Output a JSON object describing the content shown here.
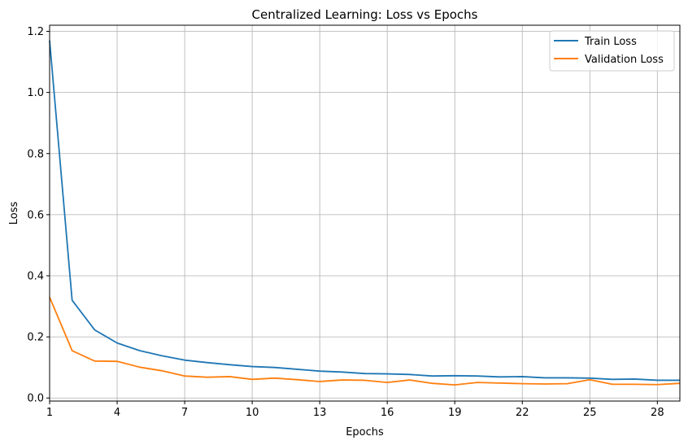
{
  "chart_data": {
    "type": "line",
    "title": "Centralized Learning: Loss vs Epochs",
    "xlabel": "Epochs",
    "ylabel": "Loss",
    "xlim": [
      1,
      29
    ],
    "ylim": [
      -0.01,
      1.22
    ],
    "xticks": [
      1,
      4,
      7,
      10,
      13,
      16,
      19,
      22,
      25,
      28
    ],
    "yticks": [
      0.0,
      0.2,
      0.4,
      0.6,
      0.8,
      1.0,
      1.2
    ],
    "ytick_labels": [
      "0.0",
      "0.2",
      "0.4",
      "0.6",
      "0.8",
      "1.0",
      "1.2"
    ],
    "grid": true,
    "legend_position": "top-right",
    "x": [
      1,
      2,
      3,
      4,
      5,
      6,
      7,
      8,
      9,
      10,
      11,
      12,
      13,
      14,
      15,
      16,
      17,
      18,
      19,
      20,
      21,
      22,
      23,
      24,
      25,
      26,
      27,
      28,
      29
    ],
    "series": [
      {
        "name": "Train Loss",
        "color": "#1f77b4",
        "values": [
          1.17,
          0.32,
          0.223,
          0.18,
          0.155,
          0.138,
          0.124,
          0.116,
          0.109,
          0.103,
          0.1,
          0.094,
          0.088,
          0.085,
          0.08,
          0.079,
          0.077,
          0.072,
          0.073,
          0.072,
          0.069,
          0.07,
          0.066,
          0.066,
          0.065,
          0.061,
          0.062,
          0.058,
          0.058
        ]
      },
      {
        "name": "Validation Loss",
        "color": "#ff7f0e",
        "values": [
          0.33,
          0.155,
          0.121,
          0.12,
          0.101,
          0.089,
          0.072,
          0.068,
          0.07,
          0.061,
          0.065,
          0.06,
          0.054,
          0.059,
          0.058,
          0.051,
          0.059,
          0.048,
          0.043,
          0.051,
          0.049,
          0.047,
          0.046,
          0.047,
          0.06,
          0.045,
          0.045,
          0.044,
          0.048
        ]
      }
    ]
  }
}
